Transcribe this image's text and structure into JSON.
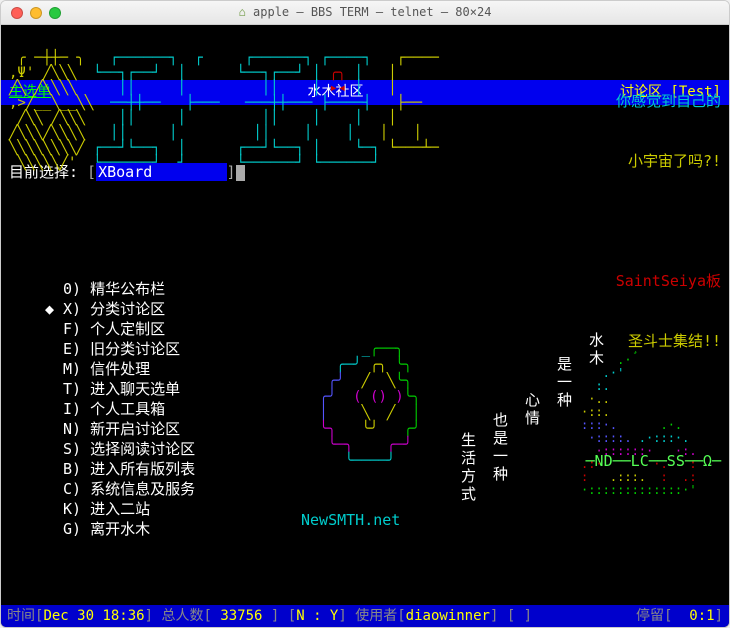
{
  "window": {
    "title": "apple — BBS TERM — telnet — 80×24"
  },
  "header": {
    "left": "主选单",
    "center": "水木社区",
    "right": "讨论区 [Test]"
  },
  "selection": {
    "label": "目前选择:",
    "value": "XBoard"
  },
  "promo": {
    "line1": "你感觉到自己的",
    "line2": "小宇宙了吗?!",
    "line3": "SaintSeiya板",
    "line4": "圣斗士集结!!",
    "tags": "─ND──LC──SS──Ω─"
  },
  "menu": [
    {
      "key": "0)",
      "label": "精华公布栏",
      "selected": false
    },
    {
      "key": "X)",
      "label": "分类讨论区",
      "selected": true
    },
    {
      "key": "F)",
      "label": "个人定制区",
      "selected": false
    },
    {
      "key": "E)",
      "label": "旧分类讨论区",
      "selected": false
    },
    {
      "key": "M)",
      "label": "信件处理",
      "selected": false
    },
    {
      "key": "T)",
      "label": "进入聊天选单",
      "selected": false
    },
    {
      "key": "I)",
      "label": "个人工具箱",
      "selected": false
    },
    {
      "key": "N)",
      "label": "新开启讨论区",
      "selected": false
    },
    {
      "key": "S)",
      "label": "选择阅读讨论区",
      "selected": false
    },
    {
      "key": "B)",
      "label": "进入所有版列表",
      "selected": false
    },
    {
      "key": "C)",
      "label": "系统信息及服务",
      "selected": false
    },
    {
      "key": "K)",
      "label": "进入二站",
      "selected": false
    },
    {
      "key": "G)",
      "label": "离开水木",
      "selected": false
    }
  ],
  "slogan": {
    "cols": [
      "生活方式",
      "也是一种",
      "心情",
      "是一种",
      "水木"
    ]
  },
  "brand": "NewSMTH.net",
  "status": {
    "time_label": "时间",
    "time": "Dec 30 18:36",
    "users_label": "总人数",
    "users": "33756",
    "ny": "N : Y",
    "user_label": "使用者",
    "user": "diaowinner",
    "stay_label": "停留",
    "stay": "0:1"
  }
}
